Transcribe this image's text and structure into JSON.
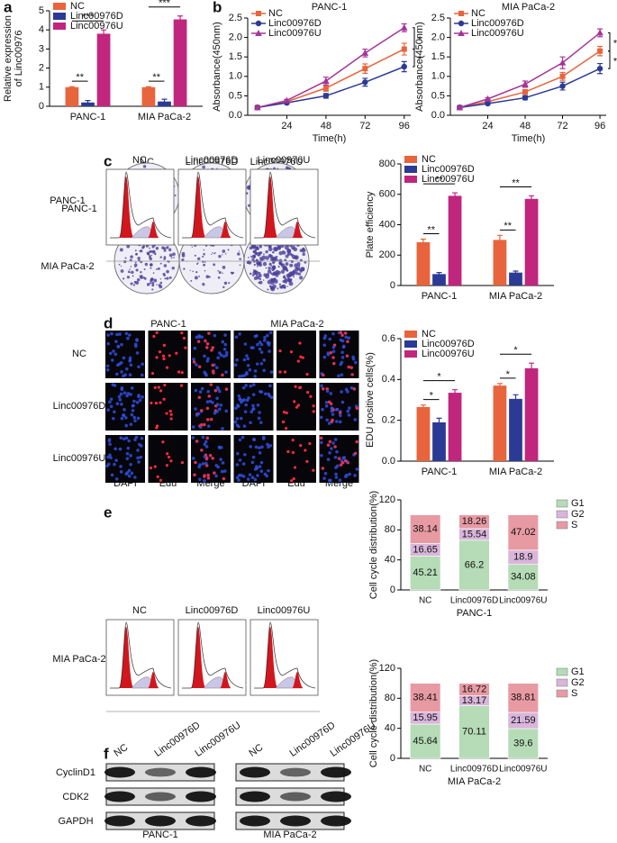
{
  "chart_data": [
    {
      "type": "bar",
      "ylabel": [
        "Relative expression",
        "of Linc00976"
      ],
      "categories": [
        "PANC-1",
        "MIA PaCa-2"
      ],
      "series": [
        {
          "name": "NC",
          "color": "#e8643c",
          "values": [
            1.0,
            1.0
          ],
          "errors": [
            0.03,
            0.03
          ]
        },
        {
          "name": "Linc00976D",
          "color": "#2b3a94",
          "values": [
            0.2,
            0.25
          ],
          "errors": [
            0.1,
            0.12
          ]
        },
        {
          "name": "Linc00976U",
          "color": "#c0267e",
          "values": [
            3.8,
            4.55
          ],
          "errors": [
            0.2,
            0.18
          ]
        }
      ],
      "ylim": [
        0,
        5
      ],
      "yticks": [
        0,
        1,
        2,
        3,
        4,
        5
      ],
      "legend": "upper left",
      "annotations": [
        "**",
        "***",
        "**",
        "***"
      ]
    },
    {
      "type": "line",
      "title": "PANC-1",
      "xlabel": "Time(h)",
      "ylabel": [
        "Absorbance(450nm)"
      ],
      "x": [
        6,
        24,
        48,
        72,
        96
      ],
      "xlim": [
        0,
        100
      ],
      "xticks": [
        24,
        48,
        72,
        96
      ],
      "series": [
        {
          "name": "NC",
          "color": "#e8643c",
          "marker": "square",
          "values": [
            0.2,
            0.35,
            0.7,
            1.2,
            1.7
          ],
          "errors": [
            0.02,
            0.03,
            0.08,
            0.12,
            0.15
          ]
        },
        {
          "name": "Linc00976D",
          "color": "#2b3a94",
          "marker": "circle",
          "values": [
            0.2,
            0.32,
            0.5,
            0.85,
            1.25
          ],
          "errors": [
            0.02,
            0.03,
            0.06,
            0.1,
            0.13
          ]
        },
        {
          "name": "Linc00976U",
          "color": "#a4359a",
          "marker": "triangle",
          "values": [
            0.2,
            0.38,
            0.88,
            1.6,
            2.25
          ],
          "errors": [
            0.02,
            0.03,
            0.1,
            0.1,
            0.1
          ]
        }
      ],
      "ylim": [
        0,
        2.5
      ],
      "yticks": [
        {
          "value": 0,
          "label": "0.0"
        },
        0.5,
        {
          "value": 1,
          "label": "1.0"
        },
        1.5,
        {
          "value": 2,
          "label": "2.0"
        },
        2.5
      ],
      "legend": "upper left",
      "annotations": [
        "*",
        "*"
      ]
    },
    {
      "type": "line",
      "title": "MIA PaCa-2",
      "xlabel": "Time(h)",
      "ylabel": [
        "Absorbance(450nm)"
      ],
      "x": [
        6,
        24,
        48,
        72,
        96
      ],
      "xlim": [
        0,
        100
      ],
      "xticks": [
        24,
        48,
        72,
        96
      ],
      "series": [
        {
          "name": "NC",
          "color": "#e8643c",
          "marker": "square",
          "values": [
            0.2,
            0.35,
            0.6,
            1.0,
            1.65
          ],
          "errors": [
            0.02,
            0.03,
            0.06,
            0.1,
            0.12
          ]
        },
        {
          "name": "Linc00976D",
          "color": "#2b3a94",
          "marker": "circle",
          "values": [
            0.2,
            0.3,
            0.45,
            0.75,
            1.2
          ],
          "errors": [
            0.02,
            0.03,
            0.05,
            0.1,
            0.13
          ]
        },
        {
          "name": "Linc00976U",
          "color": "#a4359a",
          "marker": "triangle",
          "values": [
            0.2,
            0.42,
            0.8,
            1.35,
            2.12
          ],
          "errors": [
            0.02,
            0.03,
            0.08,
            0.15,
            0.1
          ]
        }
      ],
      "ylim": [
        0,
        2.5
      ],
      "yticks": [
        {
          "value": 0,
          "label": "0.0"
        },
        0.5,
        {
          "value": 1,
          "label": "1.0"
        },
        1.5,
        {
          "value": 2,
          "label": "2.0"
        },
        2.5
      ],
      "legend": "upper left",
      "annotations": [
        "*",
        "*"
      ]
    },
    {
      "type": "bar",
      "ylabel": [
        "Plate efficiency"
      ],
      "categories": [
        "PANC-1",
        "MIA PaCa-2"
      ],
      "series": [
        {
          "name": "NC",
          "color": "#e8643c",
          "values": [
            285,
            300
          ],
          "errors": [
            20,
            30
          ]
        },
        {
          "name": "Linc00976D",
          "color": "#2b3a94",
          "values": [
            75,
            85
          ],
          "errors": [
            10,
            10
          ]
        },
        {
          "name": "Linc00976U",
          "color": "#c0267e",
          "values": [
            590,
            570
          ],
          "errors": [
            20,
            20
          ]
        }
      ],
      "ylim": [
        0,
        800
      ],
      "yticks": [
        0,
        200,
        400,
        600,
        800
      ],
      "legend": "upper left",
      "annotations": [
        "**",
        "**",
        "**",
        "**"
      ]
    },
    {
      "type": "bar",
      "ylabel": [
        "EDU positive cells(%)"
      ],
      "categories": [
        "PANC-1",
        "MIA PaCa-2"
      ],
      "series": [
        {
          "name": "NC",
          "color": "#e8643c",
          "values": [
            0.265,
            0.37
          ],
          "errors": [
            0.01,
            0.01
          ]
        },
        {
          "name": "Linc00976D",
          "color": "#2b3a94",
          "values": [
            0.19,
            0.305
          ],
          "errors": [
            0.02,
            0.02
          ]
        },
        {
          "name": "Linc00976U",
          "color": "#c0267e",
          "values": [
            0.335,
            0.455
          ],
          "errors": [
            0.015,
            0.025
          ]
        }
      ],
      "ylim": [
        0,
        0.6
      ],
      "yticks": [
        {
          "value": 0,
          "label": "0.0"
        },
        0.2,
        0.4,
        0.6
      ],
      "legend": "upper left",
      "annotations": [
        "*",
        "*",
        "*",
        "*"
      ]
    },
    {
      "type": "stacked_bar",
      "ylabel": [
        "Cell cycle distribution(%)"
      ],
      "xlabel": "PANC-1",
      "categories": [
        "NC",
        "Linc00976D",
        "Linc00976U"
      ],
      "series": [
        {
          "name": "G1",
          "color": "#b5dcb6",
          "values": [
            45.21,
            66.2,
            34.08
          ]
        },
        {
          "name": "G2",
          "color": "#d9b5dc",
          "values": [
            16.65,
            15.54,
            18.9
          ]
        },
        {
          "name": "S",
          "color": "#e89aa3",
          "values": [
            38.14,
            18.26,
            47.02
          ]
        }
      ],
      "ylim": [
        0,
        120
      ],
      "yticks": [
        0,
        40,
        80,
        120
      ],
      "legend": "right"
    },
    {
      "type": "stacked_bar",
      "ylabel": [
        "Cell cycle distribution(%)"
      ],
      "xlabel": "MIA PaCa-2",
      "categories": [
        "NC",
        "Linc00976D",
        "Linc00976U"
      ],
      "series": [
        {
          "name": "G1",
          "color": "#b5dcb6",
          "values": [
            45.64,
            70.11,
            39.6
          ]
        },
        {
          "name": "G2",
          "color": "#d9b5dc",
          "values": [
            15.95,
            13.17,
            21.59
          ]
        },
        {
          "name": "S",
          "color": "#e89aa3",
          "values": [
            38.41,
            16.72,
            38.81
          ]
        }
      ],
      "ylim": [
        0,
        120
      ],
      "yticks": [
        0,
        40,
        80,
        120
      ],
      "legend": "right"
    }
  ],
  "labels": {
    "panels": [
      "a",
      "b",
      "c",
      "d",
      "e",
      "f"
    ],
    "c": {
      "columns": [
        "NC",
        "Linc00976D",
        "Linc00976U"
      ],
      "rows": [
        "PANC-1",
        "MIA PaCa-2"
      ]
    },
    "d": {
      "groups": [
        "PANC-1",
        "MIA PaCa-2"
      ],
      "rows": [
        "NC",
        "Linc00976D",
        "Linc00976U"
      ],
      "columns": [
        "DAPI",
        "Edu",
        "Merge"
      ]
    },
    "e": {
      "columns": [
        "NC",
        "Linc00976D",
        "Linc00976U"
      ],
      "rows": [
        "PANC-1",
        "MIA PaCa-2"
      ]
    },
    "f": {
      "lanes": [
        "NC",
        "Linc00976D",
        "Linc00976U"
      ],
      "proteins": [
        "CyclinD1",
        "CDK2",
        "GAPDH"
      ],
      "cells": [
        "PANC-1",
        "MIA PaCa-2"
      ]
    }
  }
}
